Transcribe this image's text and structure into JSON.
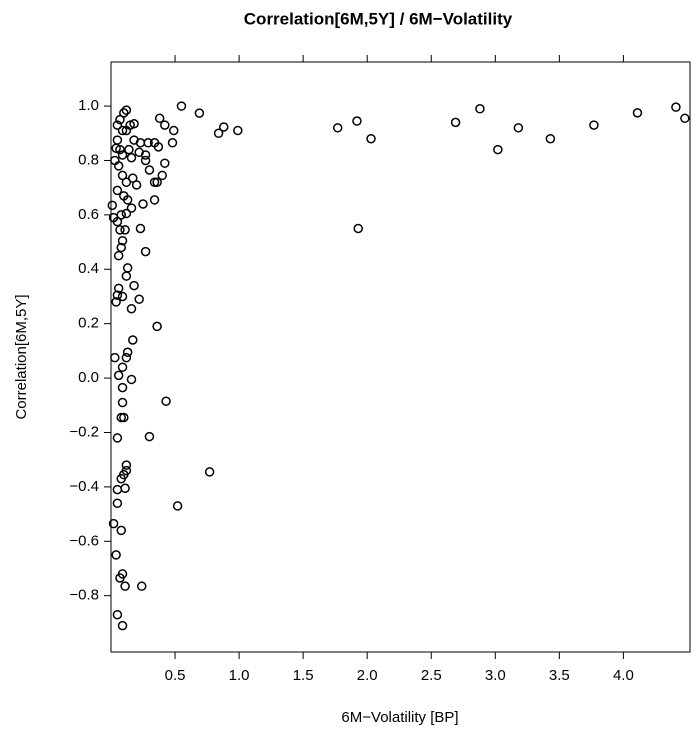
{
  "chart_data": {
    "type": "scatter",
    "title": "Correlation[6M,5Y] / 6M−Volatility",
    "x_label": "6M−Volatility [BP]",
    "y_label": "Correlation[6M,5Y]",
    "color": "#000000",
    "xlim": [
      0,
      4.52
    ],
    "ylim": [
      -1.007,
      1.162
    ],
    "xticks": [
      0.5,
      {
        "value": 1,
        "label": "1.0"
      },
      1.5,
      {
        "value": 2,
        "label": "2.0"
      },
      2.5,
      {
        "value": 3,
        "label": "3.0"
      },
      3.5,
      {
        "value": 4,
        "label": "4.0"
      }
    ],
    "yticks": [
      {
        "value": 1,
        "label": "1.0"
      },
      0.8,
      0.6,
      0.4,
      0.2,
      {
        "value": 0,
        "label": "0.0"
      },
      {
        "value": -0.2,
        "label": "−0.2"
      },
      {
        "value": -0.4,
        "label": "−0.4"
      },
      {
        "value": -0.6,
        "label": "−0.6"
      },
      {
        "value": -0.8,
        "label": "−0.8"
      }
    ],
    "x": [
      0.55,
      0.49,
      0.69,
      0.88,
      0.84,
      0.99,
      1.77,
      1.92,
      2.03,
      1.93,
      2.69,
      2.88,
      3.02,
      3.18,
      3.43,
      3.77,
      4.11,
      4.41,
      4.48,
      0.38,
      0.42,
      0.48,
      0.34,
      0.37,
      0.29,
      0.23,
      0.27,
      0.27,
      0.42,
      0.3,
      0.36,
      0.34,
      0.4,
      0.34,
      0.25,
      0.23,
      0.27,
      0.22,
      0.36,
      0.43,
      0.3,
      0.52,
      0.77,
      0.24,
      0.05,
      0.07,
      0.1,
      0.12,
      0.09,
      0.05,
      0.04,
      0.07,
      0.12,
      0.15,
      0.18,
      0.18,
      0.14,
      0.09,
      0.03,
      0.06,
      0.09,
      0.12,
      0.17,
      0.2,
      0.05,
      0.1,
      0.13,
      0.16,
      0.22,
      0.08,
      0.12,
      0.16,
      0.05,
      0.02,
      0.01,
      0.07,
      0.11,
      0.09,
      0.06,
      0.08,
      0.13,
      0.12,
      0.18,
      0.16,
      0.06,
      0.05,
      0.09,
      0.04,
      0.17,
      0.03,
      0.12,
      0.13,
      0.09,
      0.06,
      0.16,
      0.09,
      0.09,
      0.08,
      0.1,
      0.05,
      0.12,
      0.12,
      0.1,
      0.08,
      0.05,
      0.11,
      0.05,
      0.02,
      0.08,
      0.04,
      0.09,
      0.07,
      0.11,
      0.05,
      0.09
    ],
    "values": [
      1.0,
      0.91,
      0.974,
      0.923,
      0.9,
      0.91,
      0.92,
      0.945,
      0.88,
      0.55,
      0.94,
      0.99,
      0.84,
      0.92,
      0.88,
      0.93,
      0.975,
      0.996,
      0.955,
      0.955,
      0.93,
      0.865,
      0.865,
      0.85,
      0.865,
      0.865,
      0.82,
      0.8,
      0.79,
      0.765,
      0.72,
      0.72,
      0.745,
      0.655,
      0.64,
      0.55,
      0.465,
      0.29,
      0.19,
      -0.085,
      -0.215,
      -0.47,
      -0.345,
      -0.765,
      0.93,
      0.95,
      0.975,
      0.985,
      0.91,
      0.875,
      0.845,
      0.84,
      0.91,
      0.93,
      0.935,
      0.875,
      0.84,
      0.82,
      0.8,
      0.78,
      0.745,
      0.72,
      0.735,
      0.71,
      0.69,
      0.67,
      0.655,
      0.81,
      0.83,
      0.6,
      0.605,
      0.625,
      0.575,
      0.59,
      0.635,
      0.545,
      0.545,
      0.505,
      0.45,
      0.48,
      0.405,
      0.375,
      0.34,
      0.255,
      0.33,
      0.305,
      0.3,
      0.28,
      0.14,
      0.075,
      0.075,
      0.095,
      0.04,
      0.01,
      -0.005,
      -0.035,
      -0.09,
      -0.145,
      -0.145,
      -0.22,
      -0.32,
      -0.34,
      -0.355,
      -0.37,
      -0.41,
      -0.405,
      -0.46,
      -0.535,
      -0.56,
      -0.65,
      -0.72,
      -0.735,
      -0.765,
      -0.87,
      -0.91
    ]
  }
}
